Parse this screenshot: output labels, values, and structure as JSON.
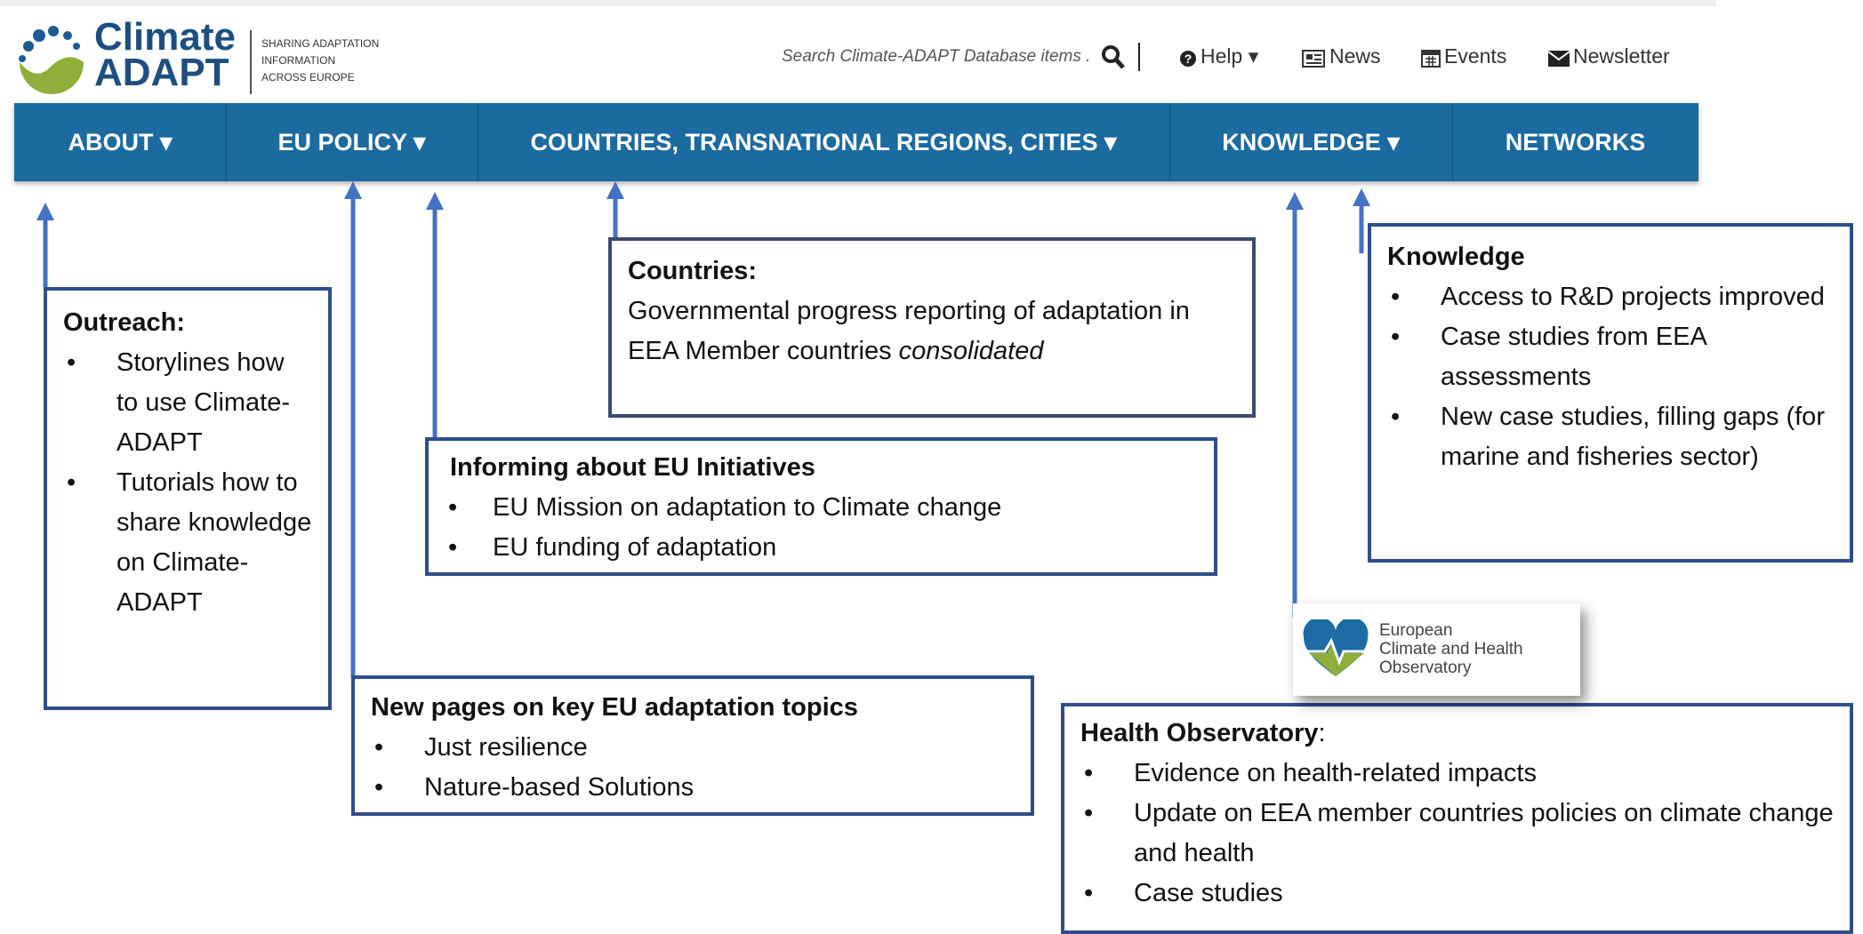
{
  "header": {
    "logo_line1": "Climate",
    "logo_line2": "ADAPT",
    "tagline": [
      "SHARING ADAPTATION",
      "INFORMATION",
      "ACROSS EUROPE"
    ],
    "search_placeholder": "Search Climate-ADAPT Database items .",
    "links": [
      "Help",
      "News",
      "Events",
      "Newsletter"
    ]
  },
  "nav": [
    "ABOUT",
    "EU POLICY",
    "COUNTRIES, TRANSNATIONAL REGIONS, CITIES",
    "KNOWLEDGE",
    "NETWORKS"
  ],
  "callouts": {
    "outreach": {
      "title": "Outreach:",
      "bullets": [
        "Storylines how to use Climate-ADAPT",
        "Tutorials how to share knowledge on Climate-ADAPT"
      ]
    },
    "countries": {
      "title": "Countries:",
      "text": "Governmental progress reporting of adaptation in EEA Member countries",
      "text_italic": "consolidated"
    },
    "initiatives": {
      "title": "Informing about EU Initiatives",
      "bullets": [
        "EU Mission on adaptation to Climate change",
        "EU funding of adaptation"
      ]
    },
    "knowledge": {
      "title": "Knowledge",
      "bullets": [
        "Access to R&D projects improved",
        "Case studies from EEA assessments",
        "New case studies, filling gaps (for marine and fisheries sector)"
      ]
    },
    "topics": {
      "title": "New pages on key EU adaptation topics",
      "bullets": [
        "Just resilience",
        "Nature-based Solutions"
      ]
    },
    "health": {
      "title": "Health Observatory",
      "title_suffix": ":",
      "bullets": [
        "Evidence on health-related impacts",
        "Update on EEA member countries policies on climate change and health",
        "Case studies"
      ]
    }
  },
  "observatory_logo": [
    "European",
    "Climate and Health",
    "Observatory"
  ]
}
